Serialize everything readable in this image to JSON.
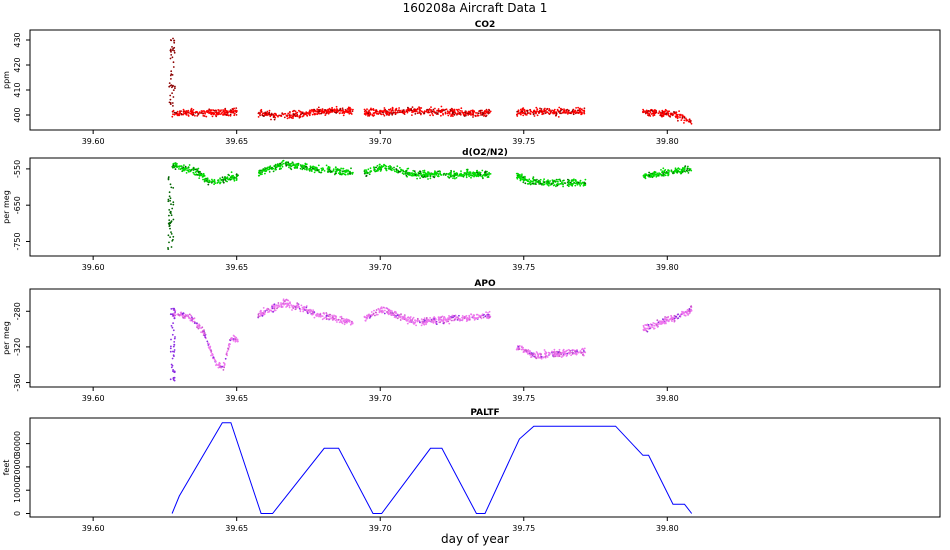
{
  "figure": {
    "title": "160208a   Aircraft Data 1",
    "xlabel": "day of year"
  },
  "chart_data": [
    {
      "type": "scatter",
      "title": "CO2",
      "ylabel": "ppm",
      "xlim": [
        39.578,
        39.895
      ],
      "ylim": [
        394,
        434
      ],
      "x_ticks": [
        "39.60",
        "39.65",
        "39.70",
        "39.75",
        "39.80"
      ],
      "y_ticks": [
        "400",
        "410",
        "420",
        "430"
      ],
      "colors": {
        "main": "#ff0000",
        "dark": "#8b0000",
        "light": "#cc0000"
      },
      "series": [
        {
          "segments": [
            [
              39.6275,
              39.6505
            ],
            [
              39.6575,
              39.6905
            ],
            [
              39.6945,
              39.7385
            ],
            [
              39.7475,
              39.7715
            ],
            [
              39.7915,
              39.8085
            ]
          ],
          "baseline": [
            [
              39.6275,
              400.5
            ],
            [
              39.64,
              401.0
            ],
            [
              39.6505,
              401.3
            ],
            [
              39.6575,
              400.8
            ],
            [
              39.665,
              399.5
            ],
            [
              39.68,
              401.5
            ],
            [
              39.6905,
              401.5
            ],
            [
              39.6945,
              401.0
            ],
            [
              39.71,
              401.6
            ],
            [
              39.7385,
              400.8
            ],
            [
              39.7475,
              401.3
            ],
            [
              39.7715,
              401.5
            ],
            [
              39.7915,
              401.2
            ],
            [
              39.802,
              400.5
            ],
            [
              39.8085,
              397.0
            ]
          ],
          "spike": {
            "x": [
              39.6265,
              39.6285
            ],
            "y_range": [
              403,
              431
            ]
          }
        }
      ]
    },
    {
      "type": "scatter",
      "title": "d(O2/N2)",
      "ylabel": "per meg",
      "xlim": [
        39.578,
        39.895
      ],
      "ylim": [
        -790,
        -520
      ],
      "x_ticks": [
        "39.60",
        "39.65",
        "39.70",
        "39.75",
        "39.80"
      ],
      "y_ticks": [
        "-750",
        "-650",
        "-550"
      ],
      "colors": {
        "main": "#00dd00",
        "dark": "#006400",
        "light": "#00aa00"
      },
      "series": [
        {
          "segments": [
            [
              39.6275,
              39.6505
            ],
            [
              39.6575,
              39.6905
            ],
            [
              39.6945,
              39.7385
            ],
            [
              39.7475,
              39.7715
            ],
            [
              39.7915,
              39.8085
            ]
          ],
          "baseline": [
            [
              39.6275,
              -540
            ],
            [
              39.632,
              -550
            ],
            [
              39.637,
              -560
            ],
            [
              39.641,
              -590
            ],
            [
              39.6445,
              -580
            ],
            [
              39.6505,
              -570
            ],
            [
              39.6575,
              -560
            ],
            [
              39.667,
              -535
            ],
            [
              39.675,
              -548
            ],
            [
              39.6905,
              -560
            ],
            [
              39.6945,
              -560
            ],
            [
              39.701,
              -545
            ],
            [
              39.712,
              -565
            ],
            [
              39.7385,
              -565
            ],
            [
              39.7475,
              -565
            ],
            [
              39.751,
              -585
            ],
            [
              39.7715,
              -590
            ],
            [
              39.7915,
              -570
            ],
            [
              39.8085,
              -550
            ]
          ],
          "spike": {
            "x": [
              39.626,
              39.628
            ],
            "y_range": [
              -780,
              -560
            ]
          }
        }
      ]
    },
    {
      "type": "scatter",
      "title": "APO",
      "ylabel": "per meg",
      "xlim": [
        39.578,
        39.895
      ],
      "ylim": [
        -365,
        -255
      ],
      "x_ticks": [
        "39.60",
        "39.65",
        "39.70",
        "39.75",
        "39.80"
      ],
      "y_ticks": [
        "-360",
        "-320",
        "-280"
      ],
      "colors": {
        "main": "#ee77ee",
        "dark": "#8a2be2",
        "light": "#cc55cc"
      },
      "series": [
        {
          "segments": [
            [
              39.6275,
              39.6505
            ],
            [
              39.6575,
              39.6905
            ],
            [
              39.6945,
              39.7385
            ],
            [
              39.7475,
              39.7715
            ],
            [
              39.7915,
              39.8085
            ]
          ],
          "baseline": [
            [
              39.6275,
              -282
            ],
            [
              39.633,
              -285
            ],
            [
              39.638,
              -300
            ],
            [
              39.643,
              -340
            ],
            [
              39.6455,
              -342
            ],
            [
              39.648,
              -310
            ],
            [
              39.6505,
              -312
            ],
            [
              39.6575,
              -285
            ],
            [
              39.667,
              -270
            ],
            [
              39.679,
              -285
            ],
            [
              39.6905,
              -292
            ],
            [
              39.6945,
              -288
            ],
            [
              39.701,
              -278
            ],
            [
              39.712,
              -292
            ],
            [
              39.7385,
              -285
            ],
            [
              39.7475,
              -320
            ],
            [
              39.754,
              -330
            ],
            [
              39.7715,
              -325
            ],
            [
              39.7915,
              -300
            ],
            [
              39.802,
              -288
            ],
            [
              39.8085,
              -278
            ]
          ],
          "spike": {
            "x": [
              39.627,
              39.6285
            ],
            "y_range": [
              -360,
              -270
            ]
          }
        }
      ]
    },
    {
      "type": "line",
      "title": "PALTF",
      "ylabel": "feet",
      "xlim": [
        39.578,
        39.895
      ],
      "ylim": [
        -1500,
        41000
      ],
      "x_ticks": [
        "39.60",
        "39.65",
        "39.70",
        "39.75",
        "39.80"
      ],
      "y_ticks": [
        "0",
        "10000",
        "20000",
        "30000"
      ],
      "colors": {
        "line": "#0000ff"
      },
      "series": [
        {
          "x": [
            39.6275,
            39.63,
            39.645,
            39.648,
            39.6585,
            39.6625,
            39.6805,
            39.6855,
            39.6975,
            39.7005,
            39.7175,
            39.7215,
            39.7335,
            39.7365,
            39.7455,
            39.7485,
            39.7535,
            39.782,
            39.7915,
            39.7935,
            39.802,
            39.806,
            39.8085
          ],
          "y": [
            0,
            7500,
            39000,
            39000,
            0,
            0,
            28000,
            28000,
            0,
            0,
            28000,
            28000,
            0,
            0,
            24000,
            32000,
            37500,
            37500,
            25000,
            25000,
            4000,
            4000,
            0
          ]
        }
      ]
    }
  ]
}
